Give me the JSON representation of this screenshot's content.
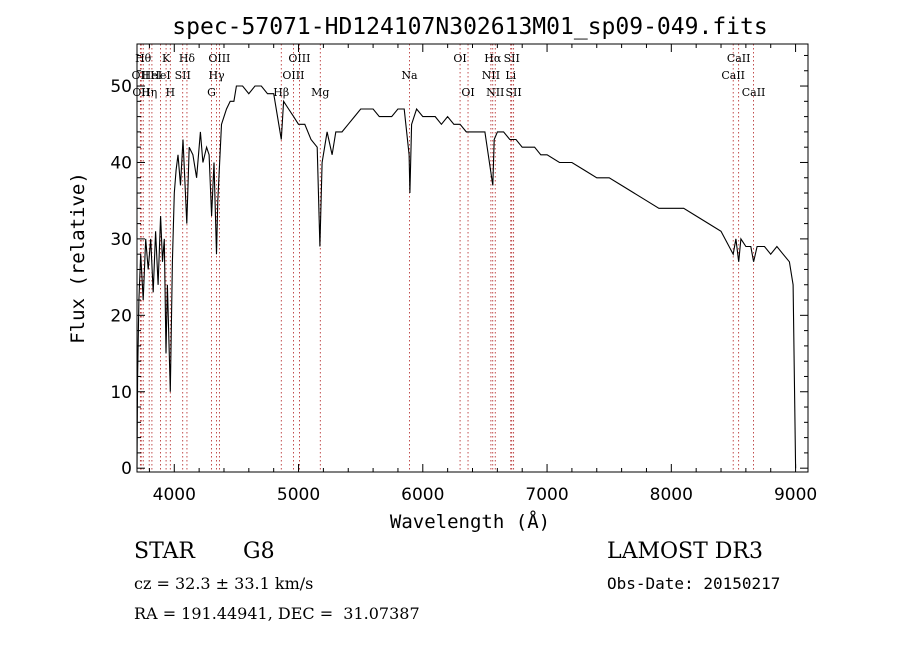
{
  "chart_data": {
    "type": "line",
    "title": "spec-57071-HD124107N302613M01_sp09-049.fits",
    "xlabel": "Wavelength (Å)",
    "ylabel": "Flux (relative)",
    "xlim": [
      3700,
      9100
    ],
    "ylim": [
      -0.5,
      55.5
    ],
    "xticks": [
      4000,
      5000,
      6000,
      7000,
      8000,
      9000
    ],
    "yticks": [
      0,
      10,
      20,
      30,
      40,
      50
    ],
    "grid": false,
    "series": [
      {
        "name": "flux",
        "points": [
          [
            3700,
            0
          ],
          [
            3705,
            12
          ],
          [
            3715,
            22
          ],
          [
            3730,
            28
          ],
          [
            3750,
            22
          ],
          [
            3770,
            30
          ],
          [
            3790,
            26
          ],
          [
            3810,
            30
          ],
          [
            3830,
            23
          ],
          [
            3850,
            31
          ],
          [
            3870,
            24
          ],
          [
            3890,
            33
          ],
          [
            3905,
            27
          ],
          [
            3920,
            30
          ],
          [
            3933,
            15
          ],
          [
            3945,
            24
          ],
          [
            3968,
            10
          ],
          [
            3985,
            27
          ],
          [
            4000,
            36
          ],
          [
            4015,
            39
          ],
          [
            4030,
            41
          ],
          [
            4050,
            37
          ],
          [
            4070,
            43
          ],
          [
            4101,
            32
          ],
          [
            4120,
            42
          ],
          [
            4150,
            41
          ],
          [
            4180,
            38
          ],
          [
            4210,
            44
          ],
          [
            4230,
            40
          ],
          [
            4260,
            42
          ],
          [
            4280,
            41
          ],
          [
            4300,
            33
          ],
          [
            4320,
            40
          ],
          [
            4340,
            28
          ],
          [
            4350,
            35
          ],
          [
            4380,
            45
          ],
          [
            4420,
            47
          ],
          [
            4450,
            48
          ],
          [
            4480,
            48
          ],
          [
            4500,
            50
          ],
          [
            4550,
            50
          ],
          [
            4600,
            49
          ],
          [
            4650,
            50
          ],
          [
            4700,
            50
          ],
          [
            4750,
            49
          ],
          [
            4800,
            49
          ],
          [
            4861,
            43
          ],
          [
            4880,
            48
          ],
          [
            4920,
            47
          ],
          [
            4960,
            46
          ],
          [
            5000,
            45
          ],
          [
            5050,
            45
          ],
          [
            5100,
            43
          ],
          [
            5150,
            42
          ],
          [
            5172,
            29
          ],
          [
            5190,
            40
          ],
          [
            5230,
            44
          ],
          [
            5270,
            41
          ],
          [
            5300,
            44
          ],
          [
            5350,
            44
          ],
          [
            5400,
            45
          ],
          [
            5450,
            46
          ],
          [
            5500,
            47
          ],
          [
            5550,
            47
          ],
          [
            5600,
            47
          ],
          [
            5650,
            46
          ],
          [
            5700,
            46
          ],
          [
            5750,
            46
          ],
          [
            5800,
            47
          ],
          [
            5850,
            47
          ],
          [
            5890,
            41
          ],
          [
            5896,
            36
          ],
          [
            5910,
            45
          ],
          [
            5950,
            47
          ],
          [
            6000,
            46
          ],
          [
            6050,
            46
          ],
          [
            6100,
            46
          ],
          [
            6150,
            45
          ],
          [
            6200,
            46
          ],
          [
            6250,
            45
          ],
          [
            6300,
            45
          ],
          [
            6350,
            44
          ],
          [
            6400,
            44
          ],
          [
            6450,
            44
          ],
          [
            6500,
            44
          ],
          [
            6563,
            37
          ],
          [
            6575,
            43
          ],
          [
            6600,
            44
          ],
          [
            6650,
            44
          ],
          [
            6700,
            43
          ],
          [
            6750,
            43
          ],
          [
            6800,
            42
          ],
          [
            6850,
            42
          ],
          [
            6900,
            42
          ],
          [
            6950,
            41
          ],
          [
            7000,
            41
          ],
          [
            7100,
            40
          ],
          [
            7200,
            40
          ],
          [
            7300,
            39
          ],
          [
            7400,
            38
          ],
          [
            7500,
            38
          ],
          [
            7600,
            37
          ],
          [
            7700,
            36
          ],
          [
            7800,
            35
          ],
          [
            7900,
            34
          ],
          [
            8000,
            34
          ],
          [
            8100,
            34
          ],
          [
            8200,
            33
          ],
          [
            8300,
            32
          ],
          [
            8400,
            31
          ],
          [
            8498,
            28
          ],
          [
            8520,
            30
          ],
          [
            8542,
            27
          ],
          [
            8560,
            30
          ],
          [
            8600,
            29
          ],
          [
            8640,
            29
          ],
          [
            8662,
            27
          ],
          [
            8690,
            29
          ],
          [
            8750,
            29
          ],
          [
            8800,
            28
          ],
          [
            8850,
            29
          ],
          [
            8900,
            28
          ],
          [
            8950,
            27
          ],
          [
            8980,
            24
          ],
          [
            9000,
            0
          ]
        ]
      }
    ],
    "lines": [
      {
        "wl": 3750,
        "label": "Hθ",
        "row": 0
      },
      {
        "wl": 3727,
        "label": "OII",
        "row": 1
      },
      {
        "wl": 3734,
        "label": "OII",
        "row": 2
      },
      {
        "wl": 3798,
        "label": "Hη",
        "row": 2
      },
      {
        "wl": 3820,
        "label": "HeI",
        "row": 1
      },
      {
        "wl": 3934,
        "label": "K",
        "row": 0
      },
      {
        "wl": 3889,
        "label": "HeI",
        "row": 1
      },
      {
        "wl": 3968,
        "label": "H",
        "row": 2
      },
      {
        "wl": 4068,
        "label": "SII",
        "row": 1
      },
      {
        "wl": 4102,
        "label": "Hδ",
        "row": 0
      },
      {
        "wl": 4300,
        "label": "G",
        "row": 2
      },
      {
        "wl": 4340,
        "label": "Hγ",
        "row": 1
      },
      {
        "wl": 4363,
        "label": "OIII",
        "row": 0
      },
      {
        "wl": 4861,
        "label": "Hβ",
        "row": 2
      },
      {
        "wl": 4959,
        "label": "OIII",
        "row": 1
      },
      {
        "wl": 5007,
        "label": "OIII",
        "row": 0
      },
      {
        "wl": 5175,
        "label": "Mg",
        "row": 2
      },
      {
        "wl": 5893,
        "label": "Na",
        "row": 1
      },
      {
        "wl": 6300,
        "label": "OI",
        "row": 0
      },
      {
        "wl": 6364,
        "label": "OI",
        "row": 2
      },
      {
        "wl": 6548,
        "label": "NII",
        "row": 1
      },
      {
        "wl": 6563,
        "label": "Hα",
        "row": 0
      },
      {
        "wl": 6583,
        "label": "NII",
        "row": 2
      },
      {
        "wl": 6708,
        "label": "Li",
        "row": 1
      },
      {
        "wl": 6716,
        "label": "SII",
        "row": 0
      },
      {
        "wl": 6731,
        "label": "SII",
        "row": 2
      },
      {
        "wl": 8498,
        "label": "CaII",
        "row": 1
      },
      {
        "wl": 8542,
        "label": "CaII",
        "row": 0
      },
      {
        "wl": 8662,
        "label": "CaII",
        "row": 2
      }
    ]
  },
  "info": {
    "object_class": "STAR",
    "subclass": "G8",
    "survey": "LAMOST DR3",
    "cz_line": "cz = 32.3 ± 33.1 km/s",
    "obs_date": "Obs-Date: 20150217",
    "coords": "RA = 191.44941, DEC =  31.07387"
  },
  "colors": {
    "spectrum": "#000000",
    "line_marker": "#b22222",
    "text": "#000000"
  }
}
